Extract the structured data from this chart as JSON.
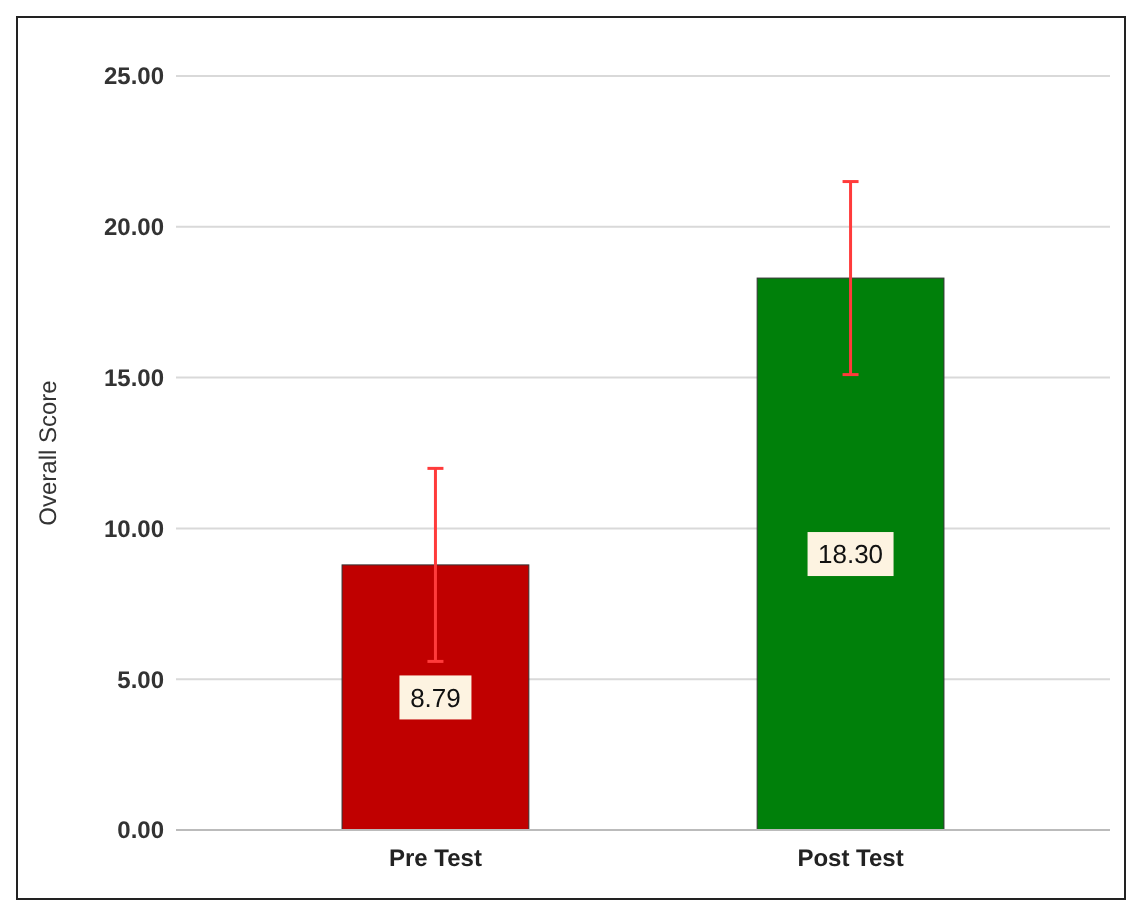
{
  "chart_data": {
    "type": "bar",
    "ylabel": "Overall Score",
    "categories": [
      "Pre Test",
      "Post Test"
    ],
    "values": [
      8.79,
      18.3
    ],
    "colors": [
      "#c00000",
      "#00800a"
    ],
    "errors": [
      3.2,
      3.2
    ],
    "value_labels": [
      "8.79",
      "18.30"
    ],
    "ylim": [
      0,
      25
    ],
    "yticks": [
      {
        "value": 0,
        "label": "0.00"
      },
      {
        "value": 5,
        "label": "5.00"
      },
      {
        "value": 10,
        "label": "10.00"
      },
      {
        "value": 15,
        "label": "15.00"
      },
      {
        "value": 20,
        "label": "20.00"
      },
      {
        "value": 25,
        "label": "25.00"
      }
    ],
    "grid": "y"
  }
}
